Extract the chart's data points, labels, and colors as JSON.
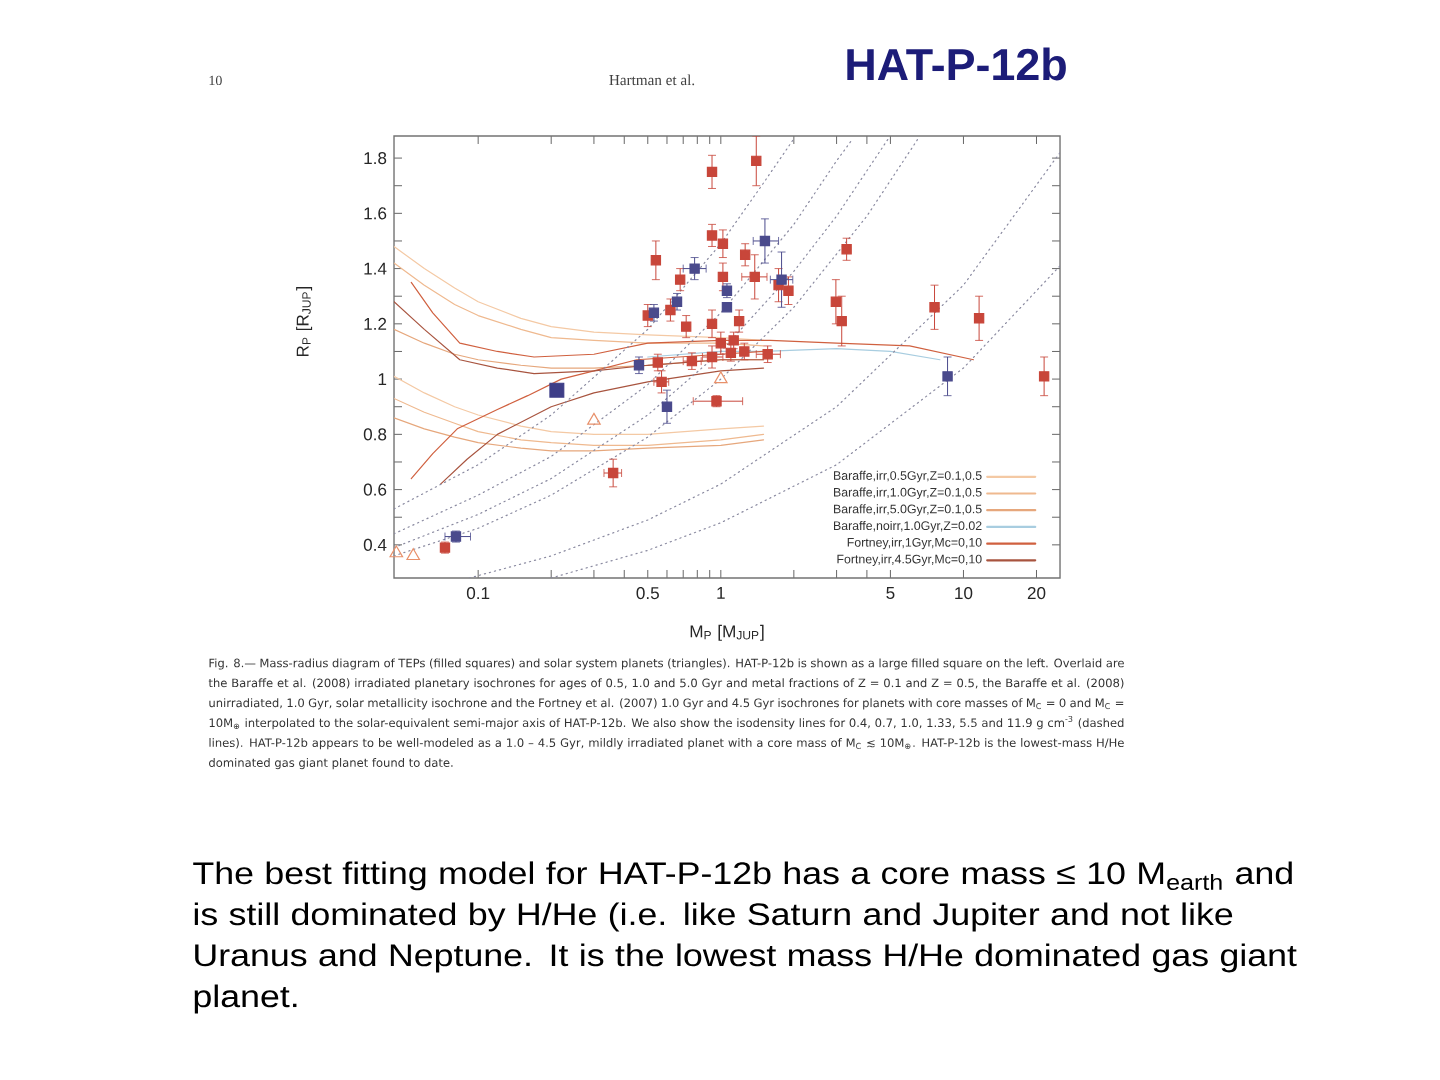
{
  "chart_data": {
    "type": "scatter",
    "title": "HAT-P-12b",
    "xlabel": "M$_{P}$ [M$_{JUP}$]",
    "ylabel": "R$_{P}$ [R$_{JUP}$]",
    "log": "x",
    "xlim": [
      0.045,
      25
    ],
    "ylim": [
      0.28,
      1.88
    ],
    "xticks": [
      0.1,
      {
        "value": 0.2,
        "label": null
      },
      {
        "value": 0.3,
        "label": null
      },
      {
        "value": 0.4,
        "label": null
      },
      0.5,
      {
        "value": 0.6,
        "label": null
      },
      {
        "value": 0.7,
        "label": null
      },
      {
        "value": 0.8,
        "label": null
      },
      {
        "value": 0.9,
        "label": null
      },
      1,
      {
        "value": 2,
        "label": null
      },
      {
        "value": 3,
        "label": null
      },
      {
        "value": 4,
        "label": null
      },
      5,
      10,
      20
    ],
    "yticks": [
      0.4,
      {
        "value": 0.5,
        "label": null
      },
      0.6,
      {
        "value": 0.7,
        "label": null
      },
      0.8,
      {
        "value": 0.9,
        "label": null
      },
      1,
      {
        "value": 1.1,
        "label": null
      },
      1.2,
      {
        "value": 1.3,
        "label": null
      },
      1.4,
      {
        "value": 1.5,
        "label": null
      },
      1.6,
      {
        "value": 1.7,
        "label": null
      },
      1.8
    ],
    "legend": "bottom right",
    "annotations": [
      "10",
      "Hartman et al.",
      "Fig. 8.— Mass-radius diagram of TEPs (filled squares) and solar system planets (triangles). HAT-P-12b is shown as a large filled square on the left. Overlaid are the Baraffe et al. (2008) irradiated planetary isochrones for ages of 0.5, 1.0 and 5.0 Gyr and metal fractions of Z = 0.1 and Z = 0.5, the Baraffe et al. (2008) unirradiated, 1.0 Gyr, solar metallicity isochrone and the Fortney et al. (2007) 1.0 Gyr and 4.5 Gyr isochrones for planets with core masses of M$_{C}$ = 0 and M$_{C}$ = 10M$_{⊕}$ interpolated to the solar-equivalent semi-major axis of HAT-P-12b. We also show the isodensity lines for 0.4, 0.7, 1.0, 1.33, 5.5 and 11.9 g cm$^{-3}$ (dashed lines). HAT-P-12b appears to be well-modeled as a 1.0 – 4.5 Gyr, mildly irradiated planet with a core mass of M$_{C}$ ≲ 10M$_{⊕}$. HAT-P-12b is the lowest-mass H/He dominated gas giant planet found to date.",
      "The best fitting model for HAT-P-12b has a core mass ≤ 10 M$_{earth}$ and is still dominated by H/He (i.e. like Saturn and Jupiter and not like Uranus and Neptune. It is the lowest mass H/He dominated gas giant planet."
    ],
    "series": [
      {
        "name": "Baraffe,irr,0.5Gyr,Z=0.1,0.5",
        "type": "line",
        "color": "#f4c9a4",
        "x": [
          0.045,
          0.06,
          0.08,
          0.1,
          0.15,
          0.2,
          0.3,
          0.5,
          1,
          1.5
        ],
        "values": [
          1.48,
          1.4,
          1.33,
          1.28,
          1.22,
          1.19,
          1.17,
          1.16,
          1.15,
          1.14
        ]
      },
      {
        "type": "line",
        "color": "#f4c9a4",
        "x": [
          0.045,
          0.06,
          0.08,
          0.1,
          0.15,
          0.2,
          0.3,
          0.5,
          1,
          1.5
        ],
        "values": [
          1.01,
          0.95,
          0.9,
          0.87,
          0.83,
          0.81,
          0.8,
          0.8,
          0.82,
          0.83
        ]
      },
      {
        "name": "Baraffe,irr,1.0Gyr,Z=0.1,0.5",
        "type": "line",
        "color": "#efb98f",
        "x": [
          0.045,
          0.06,
          0.08,
          0.1,
          0.15,
          0.2,
          0.3,
          0.5,
          1,
          1.5
        ],
        "values": [
          1.42,
          1.34,
          1.27,
          1.23,
          1.18,
          1.15,
          1.14,
          1.13,
          1.13,
          1.12
        ]
      },
      {
        "type": "line",
        "color": "#efb98f",
        "x": [
          0.045,
          0.06,
          0.08,
          0.1,
          0.15,
          0.2,
          0.3,
          0.5,
          1,
          1.5
        ],
        "values": [
          0.93,
          0.88,
          0.84,
          0.81,
          0.78,
          0.77,
          0.76,
          0.76,
          0.78,
          0.8
        ]
      },
      {
        "name": "Baraffe,irr,5.0Gyr,Z=0.1,0.5",
        "type": "line",
        "color": "#e6a77c",
        "x": [
          0.045,
          0.06,
          0.08,
          0.1,
          0.15,
          0.2,
          0.3,
          0.5,
          1,
          1.5
        ],
        "values": [
          1.18,
          1.13,
          1.09,
          1.07,
          1.05,
          1.04,
          1.04,
          1.05,
          1.07,
          1.07
        ]
      },
      {
        "type": "line",
        "color": "#e6a77c",
        "x": [
          0.045,
          0.06,
          0.08,
          0.1,
          0.15,
          0.2,
          0.3,
          0.5,
          1,
          1.5
        ],
        "values": [
          0.86,
          0.82,
          0.79,
          0.77,
          0.75,
          0.74,
          0.74,
          0.75,
          0.76,
          0.78
        ]
      },
      {
        "name": "Baraffe,noirr,1.0Gyr,Z=0.02",
        "type": "line",
        "color": "#a8cde0",
        "x": [
          0.5,
          1,
          1.5,
          3,
          5,
          8
        ],
        "values": [
          1.08,
          1.1,
          1.1,
          1.11,
          1.1,
          1.07
        ]
      },
      {
        "name": "Fortney,irr,1Gyr,Mc=0,10",
        "type": "line",
        "color": "#d0603f",
        "x": [
          0.053,
          0.065,
          0.084,
          0.12,
          0.17,
          0.3,
          0.5,
          1,
          1.6,
          3,
          6,
          11
        ],
        "values": [
          1.35,
          1.24,
          1.13,
          1.1,
          1.08,
          1.09,
          1.13,
          1.14,
          1.14,
          1.13,
          1.12,
          1.07
        ]
      },
      {
        "type": "line",
        "color": "#d0603f",
        "x": [
          0.053,
          0.065,
          0.082,
          0.12,
          0.16,
          0.22,
          0.3,
          0.45,
          1,
          1.5
        ],
        "values": [
          0.64,
          0.73,
          0.82,
          0.89,
          0.94,
          1.0,
          1.03,
          1.07,
          1.09,
          1.1
        ]
      },
      {
        "name": "Fortney,irr,4.5Gyr,Mc=0,10",
        "type": "line",
        "color": "#a8543f",
        "x": [
          0.045,
          0.06,
          0.084,
          0.12,
          0.17,
          0.3,
          0.5,
          1,
          1.5
        ],
        "values": [
          1.28,
          1.18,
          1.07,
          1.04,
          1.02,
          1.03,
          1.05,
          1.07,
          1.07
        ]
      },
      {
        "type": "line",
        "color": "#a8543f",
        "x": [
          0.07,
          0.09,
          0.12,
          0.2,
          0.3,
          0.5,
          1,
          1.5
        ],
        "values": [
          0.62,
          0.71,
          0.8,
          0.9,
          0.95,
          0.99,
          1.03,
          1.04
        ]
      },
      {
        "type": "line",
        "line_style": "dotted",
        "color": "#8a8aa0",
        "x": [
          0.045,
          0.1,
          0.2,
          0.5,
          1,
          1.5,
          2.0
        ],
        "values": [
          0.53,
          0.69,
          0.87,
          1.18,
          1.49,
          1.71,
          1.87
        ]
      },
      {
        "type": "line",
        "line_style": "dotted",
        "color": "#8a8aa0",
        "x": [
          0.045,
          0.1,
          0.2,
          0.5,
          1,
          2,
          3,
          3.5
        ],
        "values": [
          0.44,
          0.58,
          0.72,
          0.98,
          1.24,
          1.56,
          1.79,
          1.87
        ]
      },
      {
        "type": "line",
        "line_style": "dotted",
        "color": "#8a8aa0",
        "x": [
          0.045,
          0.1,
          0.2,
          0.5,
          1,
          2,
          3,
          4.9
        ],
        "values": [
          0.39,
          0.51,
          0.64,
          0.87,
          1.1,
          1.39,
          1.59,
          1.87
        ]
      },
      {
        "type": "line",
        "line_style": "dotted",
        "color": "#8a8aa0",
        "x": [
          0.045,
          0.1,
          0.2,
          0.5,
          1,
          2,
          4,
          6.5
        ],
        "values": [
          0.36,
          0.46,
          0.58,
          0.79,
          1.0,
          1.26,
          1.59,
          1.87
        ]
      },
      {
        "type": "line",
        "line_style": "dotted",
        "color": "#8a8aa0",
        "x": [
          0.092,
          0.2,
          0.5,
          1,
          3,
          10,
          25
        ],
        "values": [
          0.28,
          0.36,
          0.49,
          0.62,
          0.9,
          1.34,
          1.82
        ]
      },
      {
        "type": "line",
        "line_style": "dotted",
        "color": "#8a8aa0",
        "x": [
          0.2,
          0.5,
          1,
          3,
          10,
          25
        ],
        "values": [
          0.28,
          0.38,
          0.48,
          0.69,
          1.04,
          1.41
        ]
      },
      {
        "type": "scatter",
        "marker": "triangle",
        "color": "#e8906a",
        "x": [
          1.0,
          0.3,
          0.046,
          0.054
        ],
        "values": [
          1.0,
          0.85,
          0.37,
          0.36
        ]
      },
      {
        "type": "scatter",
        "marker": "square",
        "color": "#c8463a",
        "x": [
          0.92,
          1.4,
          0.54,
          0.92,
          1.02,
          0.68,
          1.02,
          1.26,
          1.38,
          1.73,
          1.9,
          0.62,
          0.5,
          0.72,
          0.92,
          1.19,
          1.0,
          1.13,
          1.1,
          1.25,
          1.56,
          0.76,
          0.92,
          0.55,
          0.57,
          0.96,
          3.3,
          2.98,
          3.15,
          7.6,
          11.6,
          21.5,
          0.36,
          0.073
        ],
        "values": [
          1.75,
          1.79,
          1.43,
          1.52,
          1.49,
          1.36,
          1.37,
          1.45,
          1.37,
          1.34,
          1.32,
          1.25,
          1.23,
          1.19,
          1.2,
          1.21,
          1.13,
          1.14,
          1.095,
          1.1,
          1.09,
          1.065,
          1.08,
          1.06,
          0.99,
          0.92,
          1.47,
          1.28,
          1.21,
          1.26,
          1.22,
          1.01,
          0.66,
          0.39
        ],
        "errors": [
          0.06,
          0.09,
          0.07,
          0.04,
          0.05,
          0.04,
          0.05,
          0.04,
          0.08,
          0.06,
          0.05,
          0.04,
          0.04,
          0.04,
          0.05,
          0.04,
          0.04,
          0.03,
          0.03,
          0.03,
          0.03,
          0.03,
          0.04,
          0.03,
          0.04,
          0.02,
          0.04,
          0.08,
          0.09,
          0.08,
          0.08,
          0.07,
          0.05,
          0.02
        ],
        "xerrors": [
          null,
          null,
          null,
          null,
          null,
          null,
          null,
          null,
          [
            1.22,
            1.55
          ],
          null,
          null,
          null,
          null,
          null,
          null,
          null,
          null,
          null,
          null,
          null,
          [
            1.4,
            1.76
          ],
          [
            0.7,
            0.83
          ],
          [
            0.84,
            1.02
          ],
          null,
          [
            0.53,
            0.61
          ],
          [
            0.77,
            1.23
          ],
          null,
          null,
          null,
          null,
          null,
          null,
          [
            0.33,
            0.39
          ],
          null
        ]
      },
      {
        "type": "scatter",
        "marker": "square",
        "color": "#4a4a8c",
        "x": [
          0.78,
          1.52,
          1.06,
          0.66,
          0.53,
          1.06,
          0.46,
          0.6,
          1.78,
          8.6,
          0.081
        ],
        "values": [
          1.4,
          1.5,
          1.32,
          1.28,
          1.24,
          1.26,
          1.05,
          0.9,
          1.36,
          1.01,
          0.43
        ],
        "errors": [
          0.04,
          0.08,
          0.025,
          0.03,
          0.03,
          null,
          0.03,
          0.06,
          0.1,
          0.07,
          0.02
        ],
        "xerrors": [
          [
            0.7,
            0.87
          ],
          [
            1.36,
            1.73
          ],
          null,
          null,
          null,
          null,
          null,
          null,
          [
            1.6,
            1.98
          ],
          null,
          [
            0.073,
            0.093
          ]
        ]
      },
      {
        "type": "scatter",
        "marker": "square",
        "color": "#3e3e88",
        "x": [
          0.211
        ],
        "values": [
          0.96
        ]
      }
    ]
  }
}
